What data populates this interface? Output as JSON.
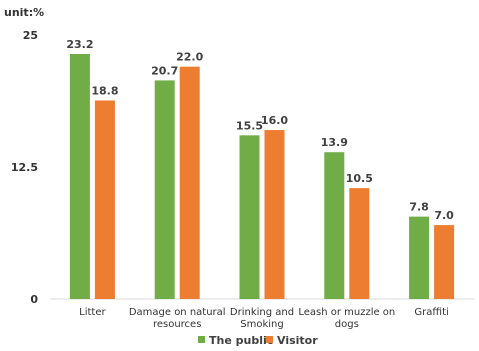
{
  "chart_data": {
    "type": "bar",
    "unit_label": "unit:%",
    "title": "",
    "xlabel": "",
    "ylabel": "",
    "ylim": [
      0,
      25
    ],
    "yticks": [
      "0",
      "12.5",
      "25"
    ],
    "grid": false,
    "legend_position": "bottom",
    "categories": [
      [
        "Litter"
      ],
      [
        "Damage on natural",
        "resources"
      ],
      [
        "Drinking and",
        "Smoking"
      ],
      [
        "Leash or muzzle on",
        "dogs"
      ],
      [
        "Graffiti"
      ]
    ],
    "series": [
      {
        "name": "The public",
        "color": "#70AD47",
        "values": [
          23.2,
          20.7,
          15.5,
          13.9,
          7.8
        ],
        "labels": [
          "23.2",
          "20.7",
          "15.5",
          "13.9",
          "7.8"
        ]
      },
      {
        "name": "Visitor",
        "color": "#ED7D31",
        "values": [
          18.8,
          22.0,
          16.0,
          10.5,
          7.0
        ],
        "labels": [
          "18.8",
          "22.0",
          "16.0",
          "10.5",
          "7.0"
        ]
      }
    ]
  }
}
